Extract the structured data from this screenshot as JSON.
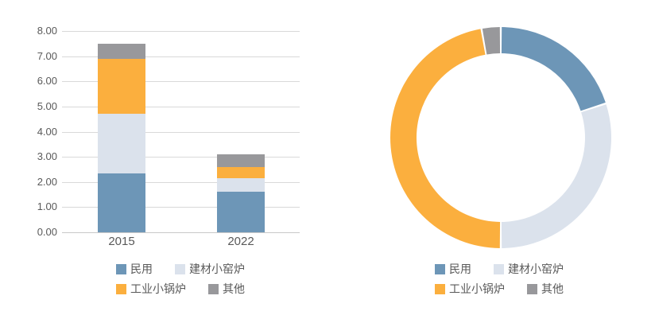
{
  "colors": {
    "residential": "#6D96B7",
    "kiln": "#DBE2EC",
    "boiler": "#FBAF3E",
    "other": "#98989B",
    "axis_text": "#595959",
    "gridline": "#D9D9D9",
    "baseline": "#C9C9C9",
    "background": "#FFFFFF"
  },
  "legend": {
    "rows": [
      [
        {
          "key": "residential",
          "label": "民用"
        },
        {
          "key": "kiln",
          "label": "建材小窑炉"
        }
      ],
      [
        {
          "key": "boiler",
          "label": "工业小锅炉"
        },
        {
          "key": "other",
          "label": "其他"
        }
      ]
    ]
  },
  "chart_data": [
    {
      "type": "bar",
      "subtype": "stacked-column",
      "title": "",
      "categories": [
        "2015",
        "2022"
      ],
      "series": [
        {
          "name": "民用",
          "key": "residential",
          "values": [
            2.35,
            1.6
          ]
        },
        {
          "name": "建材小窑炉",
          "key": "kiln",
          "values": [
            2.35,
            0.55
          ]
        },
        {
          "name": "工业小锅炉",
          "key": "boiler",
          "values": [
            2.2,
            0.45
          ]
        },
        {
          "name": "其他",
          "key": "other",
          "values": [
            0.6,
            0.5
          ]
        }
      ],
      "ylim": [
        0,
        8
      ],
      "ytick_labels": [
        "0.00",
        "1.00",
        "2.00",
        "3.00",
        "4.00",
        "5.00",
        "6.00",
        "7.00",
        "8.00"
      ],
      "grid": true,
      "legend_position": "bottom"
    },
    {
      "type": "pie",
      "subtype": "donut",
      "title": "",
      "start_angle_deg": 0,
      "direction": "clockwise",
      "segments": [
        {
          "name": "民用",
          "key": "residential",
          "percent": 20
        },
        {
          "name": "建材小窑炉",
          "key": "kiln",
          "percent": 30
        },
        {
          "name": "工业小锅炉",
          "key": "boiler",
          "percent": 47.2
        },
        {
          "name": "其他",
          "key": "other",
          "percent": 2.8
        }
      ],
      "legend_position": "bottom"
    }
  ]
}
